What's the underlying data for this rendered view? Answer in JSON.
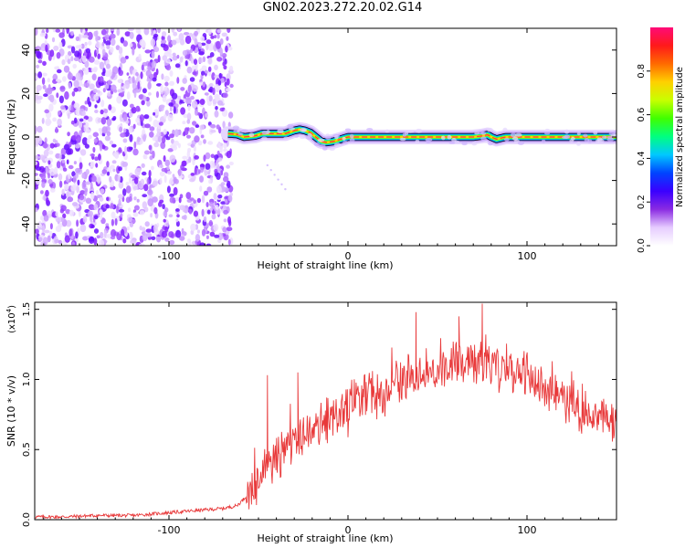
{
  "title": "GN02.2023.272.20.02.G14",
  "chart_data": [
    {
      "type": "heatmap",
      "title": "GN02.2023.272.20.02.G14",
      "xlabel": "Height of straight line (km)",
      "ylabel": "Frequency (Hz)",
      "xlim": [
        -175,
        150
      ],
      "ylim": [
        -50,
        50
      ],
      "x_ticks": [
        -100,
        0,
        100
      ],
      "x_tick_labels": [
        "-100",
        "0",
        "100"
      ],
      "y_ticks": [
        -40,
        -20,
        0,
        20,
        40
      ],
      "y_tick_labels": [
        "-40",
        "-20",
        "0",
        "20",
        "40"
      ],
      "noise_region_x": [
        -175,
        -67
      ],
      "signal_track": {
        "x": [
          -67,
          -62,
          -58,
          -52,
          -48,
          -44,
          -40,
          -35,
          -30,
          -27,
          -24,
          -21,
          -18,
          -15,
          -12,
          -8,
          -4,
          0,
          5,
          10,
          20,
          40,
          60,
          70,
          75,
          78,
          80,
          83,
          88,
          95,
          100,
          110,
          120,
          130,
          140,
          150
        ],
        "y": [
          1.5,
          1.2,
          0,
          0.5,
          1.5,
          1.5,
          1.5,
          1.5,
          3,
          3.5,
          3,
          2,
          0,
          -2,
          -2.5,
          -2,
          -1,
          0,
          0,
          0,
          0,
          0,
          0,
          0,
          0.5,
          1,
          0,
          -1,
          0,
          0,
          0,
          0,
          0,
          0,
          0,
          0
        ]
      },
      "colorbar": {
        "label": "Normalized spectral amplitude",
        "range": [
          0,
          1
        ],
        "ticks": [
          0.0,
          0.2,
          0.4,
          0.6,
          0.8
        ],
        "tick_labels": [
          "0.0",
          "0.2",
          "0.4",
          "0.6",
          "0.8"
        ],
        "colors": [
          "#ffffff",
          "#e6ccff",
          "#8a2be2",
          "#3a00ff",
          "#0044ff",
          "#00c8ff",
          "#00ff80",
          "#40ff00",
          "#c8ff00",
          "#ffd000",
          "#ff6a00",
          "#ff1a1a",
          "#ff0a78"
        ]
      },
      "grid": false
    },
    {
      "type": "line",
      "xlabel": "Height of straight line (km)",
      "ylabel": "SNR (10 * v/v)",
      "scale_label": "(x10",
      "scale_exp": "4",
      "scale_close": ")",
      "xlim": [
        -175,
        150
      ],
      "ylim": [
        0,
        1.55
      ],
      "x_ticks": [
        -100,
        0,
        100
      ],
      "x_tick_labels": [
        "-100",
        "0",
        "100"
      ],
      "y_ticks": [
        0.0,
        0.5,
        1.0,
        1.5
      ],
      "y_tick_labels": [
        "0.0",
        "0.5",
        "1.0",
        "1.5"
      ],
      "series": [
        {
          "color": "#e8393a",
          "x": [
            -175,
            -160,
            -140,
            -120,
            -100,
            -80,
            -70,
            -62,
            -58,
            -55,
            -52,
            -50,
            -45,
            -40,
            -35,
            -30,
            -25,
            -20,
            -15,
            -10,
            -5,
            0,
            5,
            10,
            20,
            30,
            40,
            50,
            60,
            70,
            75,
            80,
            90,
            100,
            110,
            120,
            130,
            140,
            150
          ],
          "y": [
            0.02,
            0.02,
            0.03,
            0.03,
            0.05,
            0.07,
            0.08,
            0.1,
            0.15,
            0.2,
            0.26,
            0.3,
            0.38,
            0.45,
            0.5,
            0.57,
            0.6,
            0.62,
            0.66,
            0.72,
            0.75,
            0.8,
            0.85,
            0.88,
            0.93,
            1.0,
            1.05,
            1.08,
            1.12,
            1.14,
            1.16,
            1.12,
            1.08,
            1.02,
            0.95,
            0.88,
            0.8,
            0.73,
            0.68
          ]
        }
      ],
      "annotated_spikes": [
        {
          "x": -45,
          "y": 1.03
        },
        {
          "x": -28,
          "y": 1.05
        },
        {
          "x": 38,
          "y": 1.48
        },
        {
          "x": 62,
          "y": 1.45
        },
        {
          "x": 75,
          "y": 1.54
        }
      ],
      "grid": false
    }
  ]
}
